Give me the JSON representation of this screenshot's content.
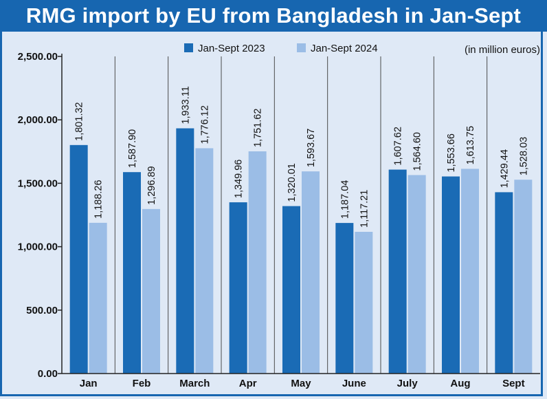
{
  "title": "RMG import by EU from Bangladesh in Jan-Sept",
  "unit_note": "(in million euros)",
  "colors": {
    "series_2023": "#1a6bb5",
    "series_2024": "#9bbde6",
    "title_bg": "#1766b0",
    "background": "#dfe9f6"
  },
  "chart_data": {
    "type": "bar",
    "title": "RMG import by EU from Bangladesh in Jan-Sept",
    "categories": [
      "Jan",
      "Feb",
      "March",
      "Apr",
      "May",
      "June",
      "July",
      "Aug",
      "Sept"
    ],
    "series": [
      {
        "name": "Jan-Sept 2023",
        "values": [
          1801.32,
          1587.9,
          1933.11,
          1349.96,
          1320.01,
          1187.04,
          1607.62,
          1553.66,
          1429.44
        ],
        "labels": [
          "1,801.32",
          "1,587.90",
          "1,933.11",
          "1,349.96",
          "1,320.01",
          "1,187.04",
          "1,607.62",
          "1,553.66",
          "1,429.44"
        ]
      },
      {
        "name": "Jan-Sept 2024",
        "values": [
          1188.26,
          1296.89,
          1776.12,
          1751.62,
          1593.67,
          1117.21,
          1564.6,
          1613.75,
          1528.03
        ],
        "labels": [
          "1,188.26",
          "1,296.89",
          "1,776.12",
          "1,751.62",
          "1,593.67",
          "1,117.21",
          "1,564.60",
          "1,613.75",
          "1,528.03"
        ]
      }
    ],
    "ylim": [
      0,
      2500
    ],
    "yticks": [
      0,
      500,
      1000,
      1500,
      2000,
      2500
    ],
    "ytick_labels": [
      "0.00",
      "500.00",
      "1,000.00",
      "1,500.00",
      "2,000.00",
      "2,500.00"
    ],
    "xlabel": "",
    "ylabel": "",
    "grid": "vertical",
    "legend_position": "top"
  }
}
